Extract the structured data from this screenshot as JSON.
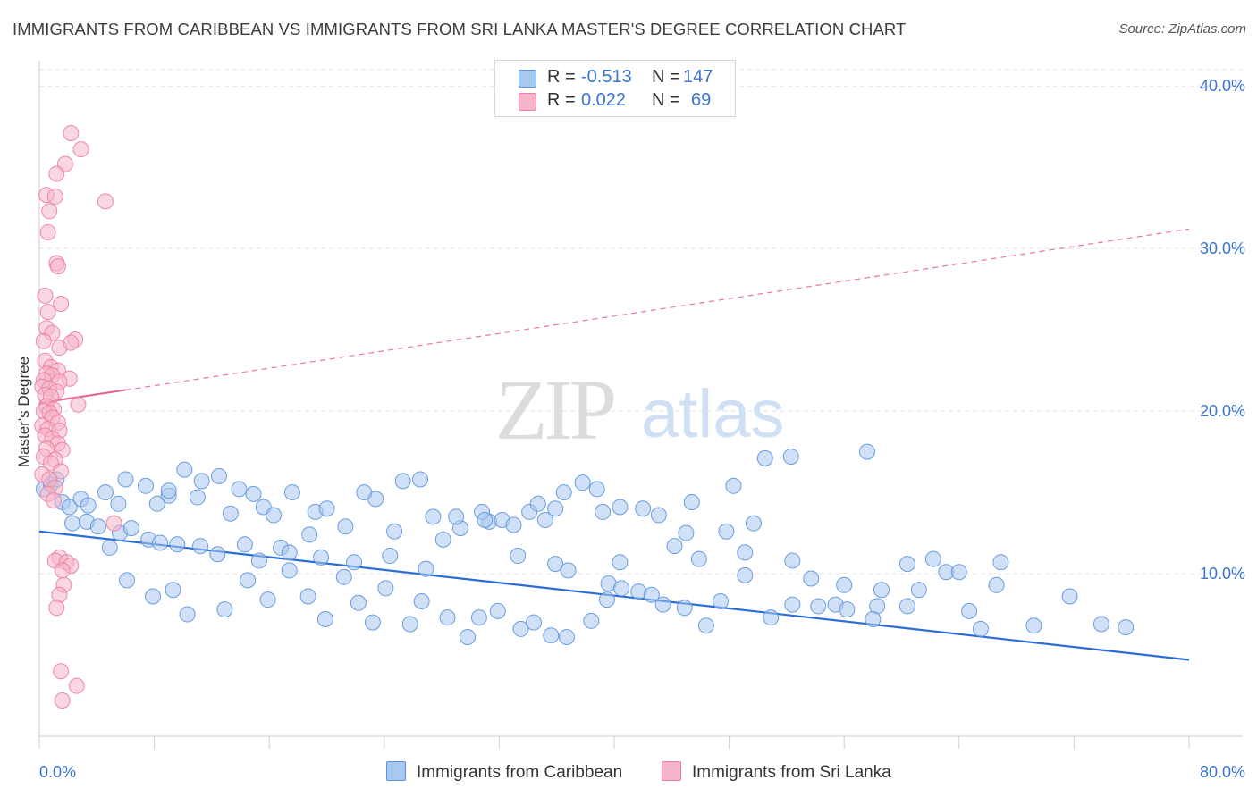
{
  "title": "IMMIGRANTS FROM CARIBBEAN VS IMMIGRANTS FROM SRI LANKA MASTER'S DEGREE CORRELATION CHART",
  "source": "Source: ZipAtlas.com",
  "watermark": {
    "zip": "ZIP",
    "atlas": "atlas"
  },
  "colors": {
    "blue_fill": "#a9c8f0",
    "blue_stroke": "#5c93dc",
    "blue_line": "#2a6dd4",
    "pink_fill": "#f6b4c8",
    "pink_stroke": "#ea7fa0",
    "pink_line": "#e5648c",
    "label_blue": "#3a74d0",
    "grid": "#e4e4e4"
  },
  "legend": {
    "rows": [
      {
        "r_label": "R =",
        "r_value": "-0.513",
        "n_label": "N =",
        "n_value": "147",
        "color": "blue"
      },
      {
        "r_label": "R =",
        "r_value": "0.022",
        "n_label": "N =",
        "n_value": "69",
        "color": "pink"
      }
    ]
  },
  "bottom_legend": [
    {
      "label": "Immigrants from Caribbean",
      "color": "blue"
    },
    {
      "label": "Immigrants from Sri Lanka",
      "color": "pink"
    }
  ],
  "chart_data": {
    "type": "scatter",
    "ylabel": "Master's Degree",
    "xlim": [
      0,
      80
    ],
    "ylim": [
      0,
      41
    ],
    "x_tick_labels": [
      "0.0%",
      "80.0%"
    ],
    "y_ticks": [
      10,
      20,
      30,
      40
    ],
    "y_tick_labels": [
      "10.0%",
      "20.0%",
      "30.0%",
      "40.0%"
    ],
    "grid": true,
    "legend_position": "top-center",
    "series": [
      {
        "name": "Immigrants from Caribbean",
        "color": "blue",
        "trend": {
          "x": [
            0,
            80
          ],
          "y": [
            12.6,
            4.7
          ],
          "style": "solid"
        },
        "points": [
          [
            0.3,
            15.2
          ],
          [
            0.8,
            15.5
          ],
          [
            1.2,
            15.8
          ],
          [
            1.6,
            14.4
          ],
          [
            2.1,
            14.1
          ],
          [
            2.9,
            14.6
          ],
          [
            3.4,
            14.2
          ],
          [
            4.6,
            15.0
          ],
          [
            5.5,
            14.3
          ],
          [
            2.3,
            13.1
          ],
          [
            3.3,
            13.2
          ],
          [
            4.1,
            12.9
          ],
          [
            4.9,
            11.6
          ],
          [
            5.6,
            12.5
          ],
          [
            6.4,
            12.8
          ],
          [
            7.6,
            12.1
          ],
          [
            8.4,
            11.9
          ],
          [
            9.6,
            11.8
          ],
          [
            11.2,
            11.7
          ],
          [
            12.4,
            11.2
          ],
          [
            14.3,
            11.8
          ],
          [
            15.3,
            10.8
          ],
          [
            16.8,
            11.6
          ],
          [
            17.4,
            11.3
          ],
          [
            19.6,
            11.0
          ],
          [
            21.9,
            10.7
          ],
          [
            24.4,
            11.1
          ],
          [
            26.9,
            10.3
          ],
          [
            29.3,
            12.8
          ],
          [
            31.3,
            13.2
          ],
          [
            33.3,
            11.1
          ],
          [
            35.9,
            10.6
          ],
          [
            36.8,
            10.2
          ],
          [
            39.6,
            9.4
          ],
          [
            40.4,
            10.7
          ],
          [
            44.2,
            11.7
          ],
          [
            45.9,
            10.9
          ],
          [
            49.1,
            11.3
          ],
          [
            52.4,
            10.8
          ],
          [
            58.3,
            8.0
          ],
          [
            6.1,
            9.6
          ],
          [
            7.9,
            8.6
          ],
          [
            9.3,
            9.0
          ],
          [
            10.3,
            7.5
          ],
          [
            12.9,
            7.8
          ],
          [
            14.5,
            9.6
          ],
          [
            15.9,
            8.4
          ],
          [
            17.4,
            10.2
          ],
          [
            18.7,
            8.6
          ],
          [
            19.9,
            7.2
          ],
          [
            21.2,
            9.8
          ],
          [
            22.2,
            8.2
          ],
          [
            23.2,
            7.0
          ],
          [
            24.1,
            9.1
          ],
          [
            25.8,
            6.9
          ],
          [
            26.6,
            8.3
          ],
          [
            28.4,
            7.3
          ],
          [
            29.8,
            6.1
          ],
          [
            30.6,
            7.3
          ],
          [
            31.9,
            7.7
          ],
          [
            33.5,
            6.6
          ],
          [
            34.4,
            7.0
          ],
          [
            35.6,
            6.2
          ],
          [
            36.7,
            6.1
          ],
          [
            38.4,
            7.1
          ],
          [
            39.5,
            8.4
          ],
          [
            40.5,
            9.1
          ],
          [
            41.7,
            8.9
          ],
          [
            42.6,
            8.7
          ],
          [
            43.4,
            8.1
          ],
          [
            44.9,
            7.9
          ],
          [
            46.4,
            6.8
          ],
          [
            47.4,
            8.3
          ],
          [
            49.1,
            9.9
          ],
          [
            50.9,
            7.3
          ],
          [
            52.4,
            8.1
          ],
          [
            54.2,
            8.0
          ],
          [
            55.4,
            8.1
          ],
          [
            56.2,
            7.8
          ],
          [
            58.0,
            7.2
          ],
          [
            60.4,
            8.0
          ],
          [
            61.2,
            9.0
          ],
          [
            63.1,
            10.1
          ],
          [
            64.7,
            7.7
          ],
          [
            65.5,
            6.6
          ],
          [
            66.6,
            9.3
          ],
          [
            69.2,
            6.8
          ],
          [
            73.9,
            6.9
          ],
          [
            75.6,
            6.7
          ],
          [
            71.7,
            8.6
          ],
          [
            7.4,
            15.4
          ],
          [
            9.0,
            14.8
          ],
          [
            10.1,
            16.4
          ],
          [
            11.3,
            15.7
          ],
          [
            13.3,
            13.7
          ],
          [
            15.6,
            14.1
          ],
          [
            17.6,
            15.0
          ],
          [
            19.2,
            13.8
          ],
          [
            21.3,
            12.9
          ],
          [
            23.4,
            14.6
          ],
          [
            24.7,
            12.6
          ],
          [
            26.5,
            15.8
          ],
          [
            28.1,
            12.1
          ],
          [
            29.0,
            13.5
          ],
          [
            30.8,
            13.8
          ],
          [
            32.2,
            13.3
          ],
          [
            34.1,
            13.8
          ],
          [
            35.2,
            13.3
          ],
          [
            35.9,
            14.0
          ],
          [
            38.8,
            15.2
          ],
          [
            40.4,
            14.1
          ],
          [
            43.1,
            13.6
          ],
          [
            45.4,
            14.4
          ],
          [
            48.3,
            15.4
          ],
          [
            50.5,
            17.1
          ],
          [
            52.3,
            17.2
          ],
          [
            57.6,
            17.5
          ],
          [
            60.4,
            10.6
          ],
          [
            62.2,
            10.9
          ],
          [
            64.0,
            10.1
          ],
          [
            66.9,
            10.7
          ],
          [
            6.0,
            15.8
          ],
          [
            8.2,
            14.3
          ],
          [
            9.0,
            15.1
          ],
          [
            11.0,
            14.7
          ],
          [
            12.5,
            16.0
          ],
          [
            13.9,
            15.2
          ],
          [
            14.9,
            14.9
          ],
          [
            16.3,
            13.6
          ],
          [
            18.8,
            12.4
          ],
          [
            20.0,
            14.0
          ],
          [
            22.6,
            15.0
          ],
          [
            25.3,
            15.7
          ],
          [
            27.4,
            13.5
          ],
          [
            31.0,
            13.3
          ],
          [
            33.0,
            13.0
          ],
          [
            34.7,
            14.3
          ],
          [
            36.5,
            15.0
          ],
          [
            37.8,
            15.6
          ],
          [
            39.2,
            13.8
          ],
          [
            42.0,
            14.0
          ],
          [
            45.0,
            12.5
          ],
          [
            47.8,
            12.6
          ],
          [
            49.7,
            13.1
          ],
          [
            53.7,
            9.7
          ],
          [
            56.0,
            9.3
          ],
          [
            58.6,
            9.0
          ]
        ]
      },
      {
        "name": "Immigrants from Sri Lanka",
        "color": "pink",
        "trend": {
          "x": [
            0,
            6
          ],
          "y": [
            20.5,
            21.3
          ],
          "style": "solid",
          "extension": {
            "x": [
              6,
              80
            ],
            "y": [
              21.3,
              31.2
            ],
            "style": "dashed"
          }
        },
        "points": [
          [
            2.2,
            37.1
          ],
          [
            2.9,
            36.1
          ],
          [
            1.8,
            35.2
          ],
          [
            1.2,
            34.6
          ],
          [
            0.5,
            33.3
          ],
          [
            1.1,
            33.2
          ],
          [
            4.6,
            32.9
          ],
          [
            0.7,
            32.3
          ],
          [
            0.6,
            31.0
          ],
          [
            1.2,
            29.1
          ],
          [
            1.3,
            28.9
          ],
          [
            0.4,
            27.1
          ],
          [
            1.5,
            26.6
          ],
          [
            0.6,
            26.1
          ],
          [
            0.5,
            25.1
          ],
          [
            0.9,
            24.8
          ],
          [
            2.5,
            24.4
          ],
          [
            0.3,
            24.3
          ],
          [
            1.4,
            23.9
          ],
          [
            2.2,
            24.2
          ],
          [
            0.4,
            23.1
          ],
          [
            0.8,
            22.7
          ],
          [
            1.3,
            22.5
          ],
          [
            0.5,
            22.3
          ],
          [
            0.9,
            22.2
          ],
          [
            2.1,
            22.0
          ],
          [
            0.3,
            21.9
          ],
          [
            1.4,
            21.8
          ],
          [
            0.2,
            21.5
          ],
          [
            0.7,
            21.4
          ],
          [
            1.2,
            21.2
          ],
          [
            0.4,
            21.0
          ],
          [
            0.8,
            20.9
          ],
          [
            2.7,
            20.4
          ],
          [
            0.5,
            20.3
          ],
          [
            1.0,
            20.1
          ],
          [
            0.3,
            20.0
          ],
          [
            0.7,
            19.9
          ],
          [
            0.9,
            19.6
          ],
          [
            1.3,
            19.3
          ],
          [
            0.2,
            19.1
          ],
          [
            0.6,
            18.9
          ],
          [
            1.4,
            18.8
          ],
          [
            0.4,
            18.5
          ],
          [
            0.9,
            18.3
          ],
          [
            1.3,
            18.0
          ],
          [
            0.5,
            17.7
          ],
          [
            1.6,
            17.6
          ],
          [
            0.3,
            17.2
          ],
          [
            1.1,
            17.0
          ],
          [
            0.8,
            16.8
          ],
          [
            1.5,
            16.3
          ],
          [
            0.2,
            16.1
          ],
          [
            0.7,
            15.8
          ],
          [
            1.1,
            15.3
          ],
          [
            0.6,
            14.9
          ],
          [
            1.0,
            14.5
          ],
          [
            5.2,
            13.1
          ],
          [
            1.4,
            11.0
          ],
          [
            1.1,
            10.8
          ],
          [
            1.9,
            10.7
          ],
          [
            2.2,
            10.5
          ],
          [
            1.6,
            10.2
          ],
          [
            1.7,
            9.3
          ],
          [
            1.4,
            8.7
          ],
          [
            1.2,
            7.9
          ],
          [
            1.5,
            4.0
          ],
          [
            2.6,
            3.1
          ],
          [
            1.6,
            2.2
          ]
        ]
      }
    ]
  }
}
